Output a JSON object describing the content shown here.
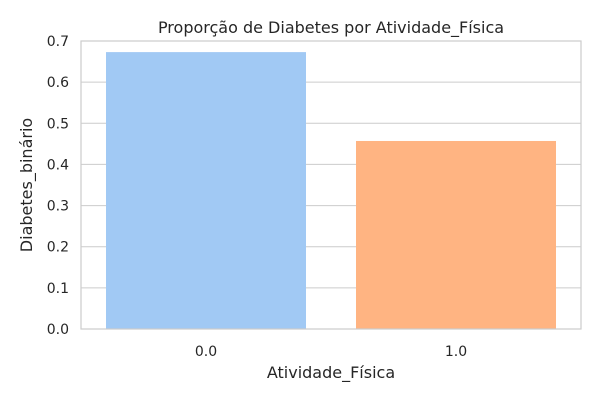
{
  "chart_data": {
    "type": "bar",
    "title": "Proporção de Diabetes por Atividade_Física",
    "xlabel": "Atividade_Física",
    "ylabel": "Diabetes_binário",
    "categories": [
      "0.0",
      "1.0"
    ],
    "values": [
      0.673,
      0.457
    ],
    "colors": [
      "#a1c9f4",
      "#ffb482"
    ],
    "ylim": [
      0,
      0.7
    ],
    "yticks": [
      "0.0",
      "0.1",
      "0.2",
      "0.3",
      "0.4",
      "0.5",
      "0.6",
      "0.7"
    ],
    "grid": true
  }
}
